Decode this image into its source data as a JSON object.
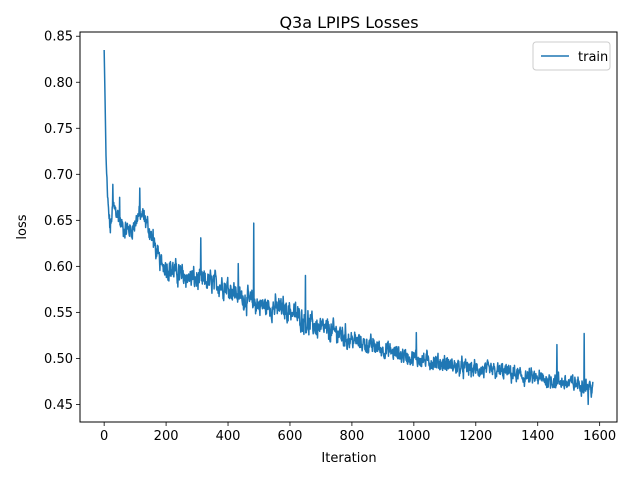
{
  "chart_data": {
    "type": "line",
    "title": "Q3a LPIPS Losses",
    "xlabel": "Iteration",
    "ylabel": "loss",
    "xlim": [
      -78,
      1656
    ],
    "ylim": [
      0.4309,
      0.8546
    ],
    "xticks": [
      0,
      200,
      400,
      600,
      800,
      1000,
      1200,
      1400,
      1600
    ],
    "xtick_labels": [
      "0",
      "200",
      "400",
      "600",
      "800",
      "1000",
      "1200",
      "1400",
      "1600"
    ],
    "yticks": [
      0.45,
      0.5,
      0.55,
      0.6,
      0.65,
      0.7,
      0.75,
      0.8,
      0.85
    ],
    "ytick_labels": [
      "0.45",
      "0.50",
      "0.55",
      "0.60",
      "0.65",
      "0.70",
      "0.75",
      "0.80",
      "0.85"
    ],
    "grid": false,
    "legend_position": "top-right",
    "series": [
      {
        "name": "train",
        "color": "#1f77b4",
        "x_start": 0,
        "x_end": 1578,
        "trend_x": [
          0,
          3,
          6,
          10,
          15,
          20,
          28,
          40,
          55,
          70,
          90,
          110,
          125,
          140,
          160,
          180,
          200,
          250,
          300,
          350,
          400,
          450,
          500,
          550,
          600,
          650,
          700,
          750,
          800,
          850,
          900,
          950,
          1000,
          1050,
          1100,
          1150,
          1200,
          1250,
          1300,
          1350,
          1400,
          1450,
          1500,
          1550,
          1578
        ],
        "trend_y": [
          0.835,
          0.78,
          0.72,
          0.68,
          0.655,
          0.64,
          0.665,
          0.66,
          0.645,
          0.64,
          0.64,
          0.655,
          0.655,
          0.645,
          0.625,
          0.605,
          0.6,
          0.59,
          0.585,
          0.582,
          0.578,
          0.565,
          0.558,
          0.555,
          0.552,
          0.54,
          0.532,
          0.528,
          0.52,
          0.515,
          0.51,
          0.505,
          0.5,
          0.497,
          0.494,
          0.49,
          0.488,
          0.486,
          0.485,
          0.48,
          0.478,
          0.476,
          0.473,
          0.472,
          0.467
        ],
        "spikes": [
          {
            "x": 28,
            "y": 0.689
          },
          {
            "x": 50,
            "y": 0.675
          },
          {
            "x": 115,
            "y": 0.685
          },
          {
            "x": 158,
            "y": 0.64
          },
          {
            "x": 312,
            "y": 0.631
          },
          {
            "x": 433,
            "y": 0.603
          },
          {
            "x": 483,
            "y": 0.647
          },
          {
            "x": 650,
            "y": 0.59
          },
          {
            "x": 1008,
            "y": 0.528
          },
          {
            "x": 1462,
            "y": 0.515
          },
          {
            "x": 1550,
            "y": 0.527
          },
          {
            "x": 1563,
            "y": 0.45
          }
        ]
      }
    ]
  }
}
